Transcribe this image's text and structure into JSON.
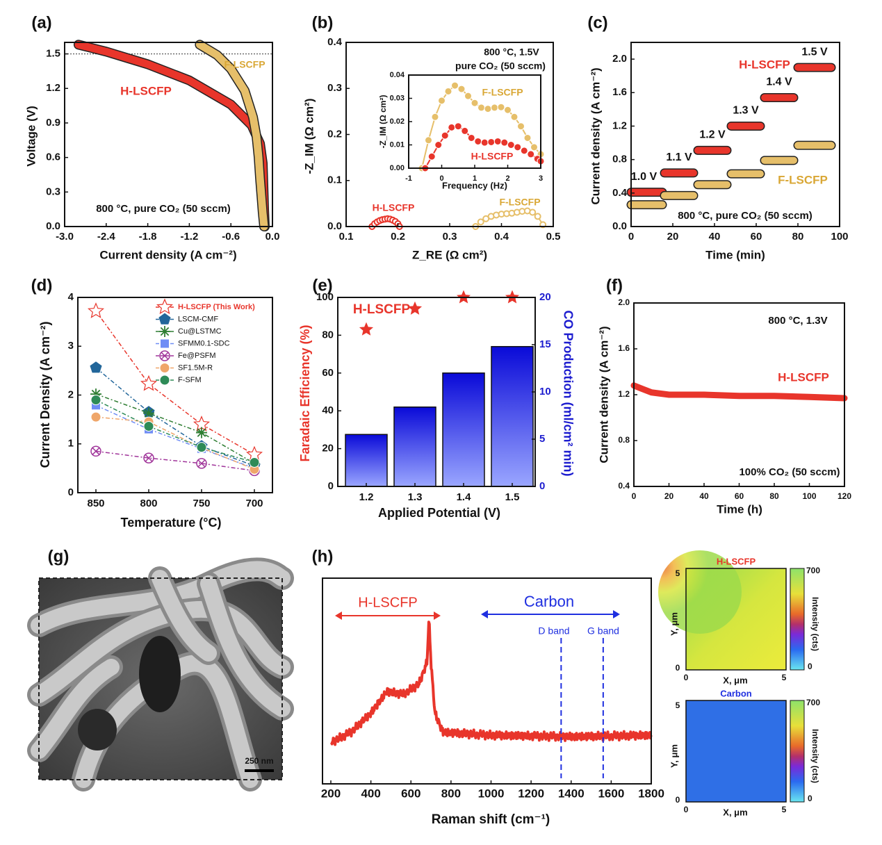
{
  "colors": {
    "red": "#e8352b",
    "gold": "#e6bf6a",
    "blue": "#1a1aa8",
    "navy": "#1c1ccf",
    "bar": "#2a3cf0"
  },
  "panel_labels": [
    "(a)",
    "(b)",
    "(c)",
    "(d)",
    "(e)",
    "(f)",
    "(g)",
    "(h)"
  ],
  "chart_data": [
    {
      "id": "a",
      "type": "line",
      "xlabel": "Current density (A cm⁻²)",
      "ylabel": "Voltage (V)",
      "xlim": [
        -3.0,
        0.0
      ],
      "ylim": [
        0.0,
        1.6
      ],
      "xticks": [
        "-3.0",
        "-2.4",
        "-1.8",
        "-1.2",
        "-0.6",
        "0.0"
      ],
      "yticks": [
        "0.0",
        "0.3",
        "0.6",
        "0.9",
        "1.2",
        "1.5"
      ],
      "annotation": "800 °C, pure CO₂ (50 sccm)",
      "reference_line_y": 1.5,
      "series": [
        {
          "name": "H-LSCFP",
          "color": "#e8352b",
          "x": [
            -2.8,
            -2.4,
            -1.8,
            -1.2,
            -0.6,
            -0.3,
            -0.18,
            -0.14,
            -0.13,
            -0.12,
            -0.11
          ],
          "y": [
            1.58,
            1.52,
            1.41,
            1.27,
            1.06,
            0.88,
            0.72,
            0.55,
            0.35,
            0.15,
            0.0
          ]
        },
        {
          "name": "F-LSCFP",
          "color": "#e6bf6a",
          "x": [
            -1.05,
            -0.8,
            -0.6,
            -0.4,
            -0.28,
            -0.23,
            -0.2,
            -0.18,
            -0.16,
            -0.14,
            -0.12
          ],
          "y": [
            1.58,
            1.49,
            1.37,
            1.18,
            0.95,
            0.78,
            0.6,
            0.42,
            0.27,
            0.12,
            0.0
          ]
        }
      ]
    },
    {
      "id": "b",
      "type": "scatter",
      "xlabel": "Z_RE (Ω cm²)",
      "ylabel": "-Z_IM (Ω cm²)",
      "xlim": [
        0.1,
        0.5
      ],
      "ylim": [
        0.0,
        0.4
      ],
      "xticks": [
        "0.1",
        "0.2",
        "0.3",
        "0.4",
        "0.5"
      ],
      "yticks": [
        "0.0",
        "0.1",
        "0.2",
        "0.3",
        "0.4"
      ],
      "annotation_line1": "800 °C, 1.5V",
      "annotation_line2": "pure CO₂ (50 sccm)",
      "series": [
        {
          "name": "H-LSCFP",
          "color": "#e8352b",
          "x": [
            0.15,
            0.155,
            0.16,
            0.165,
            0.17,
            0.175,
            0.18,
            0.185,
            0.19,
            0.195,
            0.2,
            0.203
          ],
          "y": [
            0.0,
            0.006,
            0.01,
            0.013,
            0.015,
            0.016,
            0.017,
            0.016,
            0.014,
            0.011,
            0.006,
            0.0
          ]
        },
        {
          "name": "F-LSCFP",
          "color": "#e6bf6a",
          "x": [
            0.35,
            0.36,
            0.37,
            0.38,
            0.39,
            0.4,
            0.41,
            0.42,
            0.43,
            0.44,
            0.45,
            0.46,
            0.47,
            0.48
          ],
          "y": [
            0.0,
            0.01,
            0.017,
            0.022,
            0.025,
            0.027,
            0.028,
            0.029,
            0.031,
            0.033,
            0.034,
            0.031,
            0.022,
            0.004
          ]
        }
      ],
      "inset": {
        "xlabel": "Frequency (Hz)",
        "ylabel": "-Z_IM (Ω cm²)",
        "xlim": [
          -1,
          3
        ],
        "ylim": [
          0.0,
          0.04
        ],
        "xticks": [
          "-1",
          "0",
          "1",
          "2",
          "3"
        ],
        "yticks": [
          "0.00",
          "0.01",
          "0.02",
          "0.03",
          "0.04"
        ],
        "series": [
          {
            "name": "F-LSCFP",
            "color": "#e6bf6a",
            "x": [
              -0.6,
              -0.4,
              -0.2,
              0.0,
              0.2,
              0.4,
              0.6,
              0.8,
              1.0,
              1.2,
              1.4,
              1.6,
              1.8,
              2.0,
              2.2,
              2.4,
              2.6,
              2.8,
              3.0
            ],
            "y": [
              0.0,
              0.012,
              0.022,
              0.029,
              0.033,
              0.0355,
              0.034,
              0.031,
              0.028,
              0.026,
              0.0255,
              0.026,
              0.0262,
              0.025,
              0.022,
              0.018,
              0.013,
              0.009,
              0.006
            ]
          },
          {
            "name": "H-LSCFP",
            "color": "#e8352b",
            "x": [
              -0.5,
              -0.3,
              -0.1,
              0.1,
              0.3,
              0.5,
              0.7,
              0.9,
              1.1,
              1.3,
              1.5,
              1.7,
              1.9,
              2.1,
              2.3,
              2.5,
              2.7,
              2.9,
              3.0
            ],
            "y": [
              0.0,
              0.005,
              0.01,
              0.014,
              0.0175,
              0.018,
              0.016,
              0.013,
              0.0115,
              0.011,
              0.0112,
              0.0115,
              0.011,
              0.01,
              0.009,
              0.0075,
              0.006,
              0.004,
              0.003
            ]
          }
        ]
      }
    },
    {
      "id": "c",
      "type": "line",
      "xlabel": "Time (min)",
      "ylabel": "Current density (A cm⁻²)",
      "xlim": [
        0,
        100
      ],
      "ylim": [
        0.0,
        2.2
      ],
      "xticks": [
        "0",
        "20",
        "40",
        "60",
        "80",
        "100"
      ],
      "yticks": [
        "0.0",
        "0.4",
        "0.8",
        "1.2",
        "1.6",
        "2.0"
      ],
      "annotation": "800 °C, pure CO₂ (50 sccm)",
      "steps": [
        "1.0 V",
        "1.1 V",
        "1.2 V",
        "1.3 V",
        "1.4 V",
        "1.5 V"
      ],
      "step_x": [
        [
          0,
          15
        ],
        [
          16,
          30
        ],
        [
          32,
          46
        ],
        [
          48,
          62
        ],
        [
          64,
          78
        ],
        [
          80,
          96
        ]
      ],
      "series": [
        {
          "name": "H-LSCFP",
          "color": "#e8352b",
          "values": [
            0.41,
            0.64,
            0.91,
            1.2,
            1.54,
            1.9
          ]
        },
        {
          "name": "F-LSCFP",
          "color": "#e6bf6a",
          "values": [
            0.26,
            0.37,
            0.5,
            0.63,
            0.79,
            0.97
          ]
        }
      ]
    },
    {
      "id": "d",
      "type": "line",
      "xlabel": "Temperature (°C)",
      "ylabel": "Current Density (A cm⁻²)",
      "categories": [
        "850",
        "800",
        "750",
        "700"
      ],
      "ylim": [
        0,
        4
      ],
      "yticks": [
        "0",
        "1",
        "2",
        "3",
        "4"
      ],
      "series": [
        {
          "name": "H-LSCFP (This Work)",
          "color": "#e8352b",
          "marker": "star",
          "values": [
            3.72,
            2.23,
            1.4,
            0.78
          ]
        },
        {
          "name": "LSCM-CMF",
          "color": "#22669a",
          "marker": "pentagon",
          "values": [
            2.56,
            1.65,
            0.95,
            0.55
          ]
        },
        {
          "name": "Cu@LSTMC",
          "color": "#2e7d32",
          "marker": "asterisk",
          "values": [
            2.02,
            1.63,
            1.23,
            0.6
          ]
        },
        {
          "name": "SFMM0.1-SDC",
          "color": "#6f8df5",
          "marker": "square",
          "values": [
            1.79,
            1.3,
            0.9,
            0.5
          ]
        },
        {
          "name": "Fe@PSFM",
          "color": "#a0349a",
          "marker": "xcircle",
          "values": [
            0.85,
            0.71,
            0.6,
            0.45
          ]
        },
        {
          "name": "SF1.5M-R",
          "color": "#efa66a",
          "marker": "circle",
          "values": [
            1.55,
            1.45,
            0.92,
            0.48
          ]
        },
        {
          "name": "F-SFM",
          "color": "#2e8b57",
          "marker": "circle",
          "values": [
            1.9,
            1.36,
            0.93,
            0.62
          ]
        }
      ]
    },
    {
      "id": "e",
      "type": "bar",
      "title": "H-LSCFP",
      "xlabel": "Applied Potential (V)",
      "ylabel": "Faradaic Efficiency (%)",
      "ylabel_right": "CO Production (ml/cm² min)",
      "categories": [
        "1.2",
        "1.3",
        "1.4",
        "1.5"
      ],
      "ylim": [
        0,
        100
      ],
      "yticks": [
        "0",
        "20",
        "40",
        "60",
        "80",
        "100"
      ],
      "ylim_right": [
        0,
        20
      ],
      "yticks_right": [
        "0",
        "5",
        "10",
        "15",
        "20"
      ],
      "series": [
        {
          "name": "CO Production",
          "axis": "right",
          "values": [
            5.5,
            8.4,
            12.0,
            14.8
          ]
        },
        {
          "name": "Faradaic Efficiency",
          "axis": "left",
          "values": [
            83,
            94,
            100,
            100
          ]
        }
      ]
    },
    {
      "id": "f",
      "type": "line",
      "xlabel": "Time (h)",
      "ylabel": "Current density (A cm⁻²)",
      "xlim": [
        0,
        120
      ],
      "ylim": [
        0.4,
        2.0
      ],
      "xticks": [
        "0",
        "20",
        "40",
        "60",
        "80",
        "100",
        "120"
      ],
      "yticks": [
        "0.4",
        "0.8",
        "1.2",
        "1.6",
        "2.0"
      ],
      "annotation_top": "800 °C, 1.3V",
      "annotation_bottom": "100% CO₂ (50 sccm)",
      "series": [
        {
          "name": "H-LSCFP",
          "color": "#e8352b",
          "x": [
            0,
            5,
            10,
            20,
            40,
            60,
            80,
            100,
            120
          ],
          "y": [
            1.28,
            1.25,
            1.22,
            1.2,
            1.2,
            1.19,
            1.19,
            1.18,
            1.17
          ]
        }
      ]
    },
    {
      "id": "h",
      "type": "line",
      "xlabel": "Raman shift (cm⁻¹)",
      "xlim": [
        200,
        1800
      ],
      "xticks": [
        "200",
        "400",
        "600",
        "800",
        "1000",
        "1200",
        "1400",
        "1600",
        "1800"
      ],
      "labels": {
        "material": "H-LSCFP",
        "carbon": "Carbon",
        "d_band": "D band",
        "g_band": "G band"
      },
      "d_band_x": 1350,
      "g_band_x": 1560,
      "series": [
        {
          "name": "Raman",
          "color": "#e8352b",
          "x": [
            200,
            300,
            400,
            480,
            560,
            640,
            680,
            690,
            700,
            720,
            760,
            1000,
            1400,
            1800
          ],
          "y": [
            0.15,
            0.22,
            0.35,
            0.5,
            0.48,
            0.55,
            0.7,
            1.0,
            0.7,
            0.35,
            0.22,
            0.2,
            0.19,
            0.2
          ]
        }
      ]
    }
  ],
  "maps": {
    "top": {
      "title": "H-LSCFP",
      "xlabel": "X, μm",
      "ylabel": "Y, μm",
      "ticks_min": "0",
      "ticks_max": "5",
      "cbar_label": "Intensity (cts)",
      "cbar_max": "700",
      "cbar_min": "0"
    },
    "bottom": {
      "title": "Carbon",
      "xlabel": "X, μm",
      "ylabel": "Y, μm",
      "ticks_min": "0",
      "ticks_max": "5",
      "cbar_label": "Intensity (cts)",
      "cbar_max": "700",
      "cbar_min": "0"
    }
  },
  "sem": {
    "scale_bar": "250 nm"
  }
}
